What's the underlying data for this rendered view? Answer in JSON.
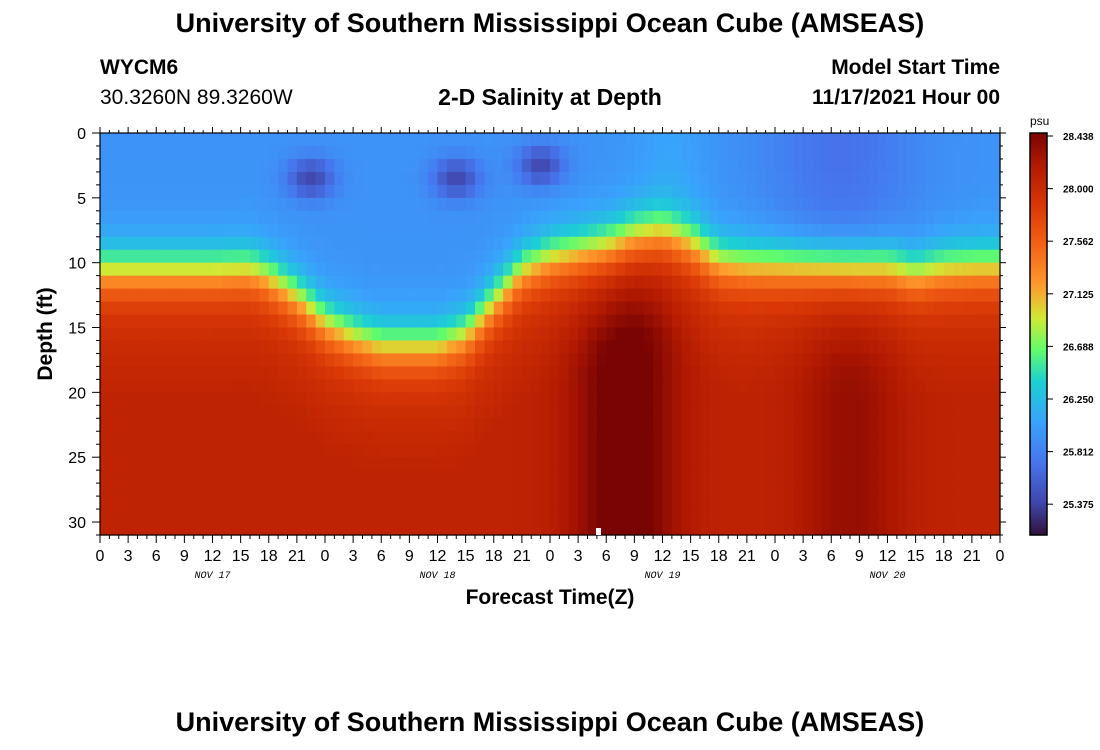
{
  "header": {
    "title": "University of Southern Mississippi Ocean Cube (AMSEAS)",
    "station_id": "WYCM6",
    "station_coords": "30.3260N  89.3260W",
    "chart_title": "2-D Salinity at Depth",
    "model_start_label": "Model Start Time",
    "model_start_value": "11/17/2021 Hour 00"
  },
  "footer": {
    "title": "University of Southern Mississippi Ocean Cube (AMSEAS)"
  },
  "chart_data": {
    "type": "heatmap",
    "title": "2-D Salinity at Depth",
    "xlabel": "Forecast Time(Z)",
    "ylabel": "Depth (ft)",
    "xlim": [
      0,
      96
    ],
    "ylim": [
      0,
      31
    ],
    "x_tick_step_hours": 3,
    "x_tick_labels": [
      "0",
      "3",
      "6",
      "9",
      "12",
      "15",
      "18",
      "21",
      "0",
      "3",
      "6",
      "9",
      "12",
      "15",
      "18",
      "21",
      "0",
      "3",
      "6",
      "9",
      "12",
      "15",
      "18",
      "21",
      "0",
      "3",
      "6",
      "9",
      "12",
      "15",
      "18",
      "21",
      "0"
    ],
    "day_labels": [
      {
        "label": "NOV 17",
        "hour": 12
      },
      {
        "label": "NOV 18",
        "hour": 36
      },
      {
        "label": "NOV 19",
        "hour": 60
      },
      {
        "label": "NOV 20",
        "hour": 84
      }
    ],
    "y_ticks": [
      0,
      5,
      10,
      15,
      20,
      25,
      30
    ],
    "colorbar": {
      "unit": "psu",
      "vmin": 25.0,
      "vmax": 28.438,
      "tick_values": [
        28.438,
        28.0,
        27.562,
        27.125,
        26.688,
        26.25,
        25.812,
        25.375
      ],
      "tick_labels": [
        "28.438",
        "28.000",
        "27.562",
        "27.125",
        "26.688",
        "26.250",
        "25.812",
        "25.375"
      ]
    },
    "halocline_depth_ft": [
      [
        0,
        10.5
      ],
      [
        6,
        10.5
      ],
      [
        12,
        10.5
      ],
      [
        16,
        10.4
      ],
      [
        18,
        11
      ],
      [
        21,
        12.5
      ],
      [
        24,
        14.5
      ],
      [
        27,
        15.6
      ],
      [
        30,
        16.3
      ],
      [
        36,
        16.3
      ],
      [
        39,
        15.5
      ],
      [
        42,
        13
      ],
      [
        45,
        10.5
      ],
      [
        48,
        9.5
      ],
      [
        51,
        9
      ],
      [
        54,
        8.5
      ],
      [
        57,
        7.7
      ],
      [
        60,
        7.4
      ],
      [
        63,
        8.3
      ],
      [
        66,
        9.8
      ],
      [
        69,
        10
      ],
      [
        78,
        10
      ],
      [
        84,
        10.1
      ],
      [
        87,
        10.7
      ],
      [
        90,
        10.3
      ],
      [
        93,
        10.2
      ],
      [
        96,
        10.2
      ]
    ],
    "fresh_patches": [
      {
        "hour": 22.5,
        "depth_ft": 3.5
      },
      {
        "hour": 38,
        "depth_ft": 3.5
      },
      {
        "hour": 47,
        "depth_ft": 2.5
      }
    ],
    "salinity_peaks": [
      {
        "hour": 56,
        "depth_ft": 29,
        "value": 28.438
      },
      {
        "hour": 80,
        "depth_ft": 24,
        "value": 28.2
      }
    ]
  }
}
